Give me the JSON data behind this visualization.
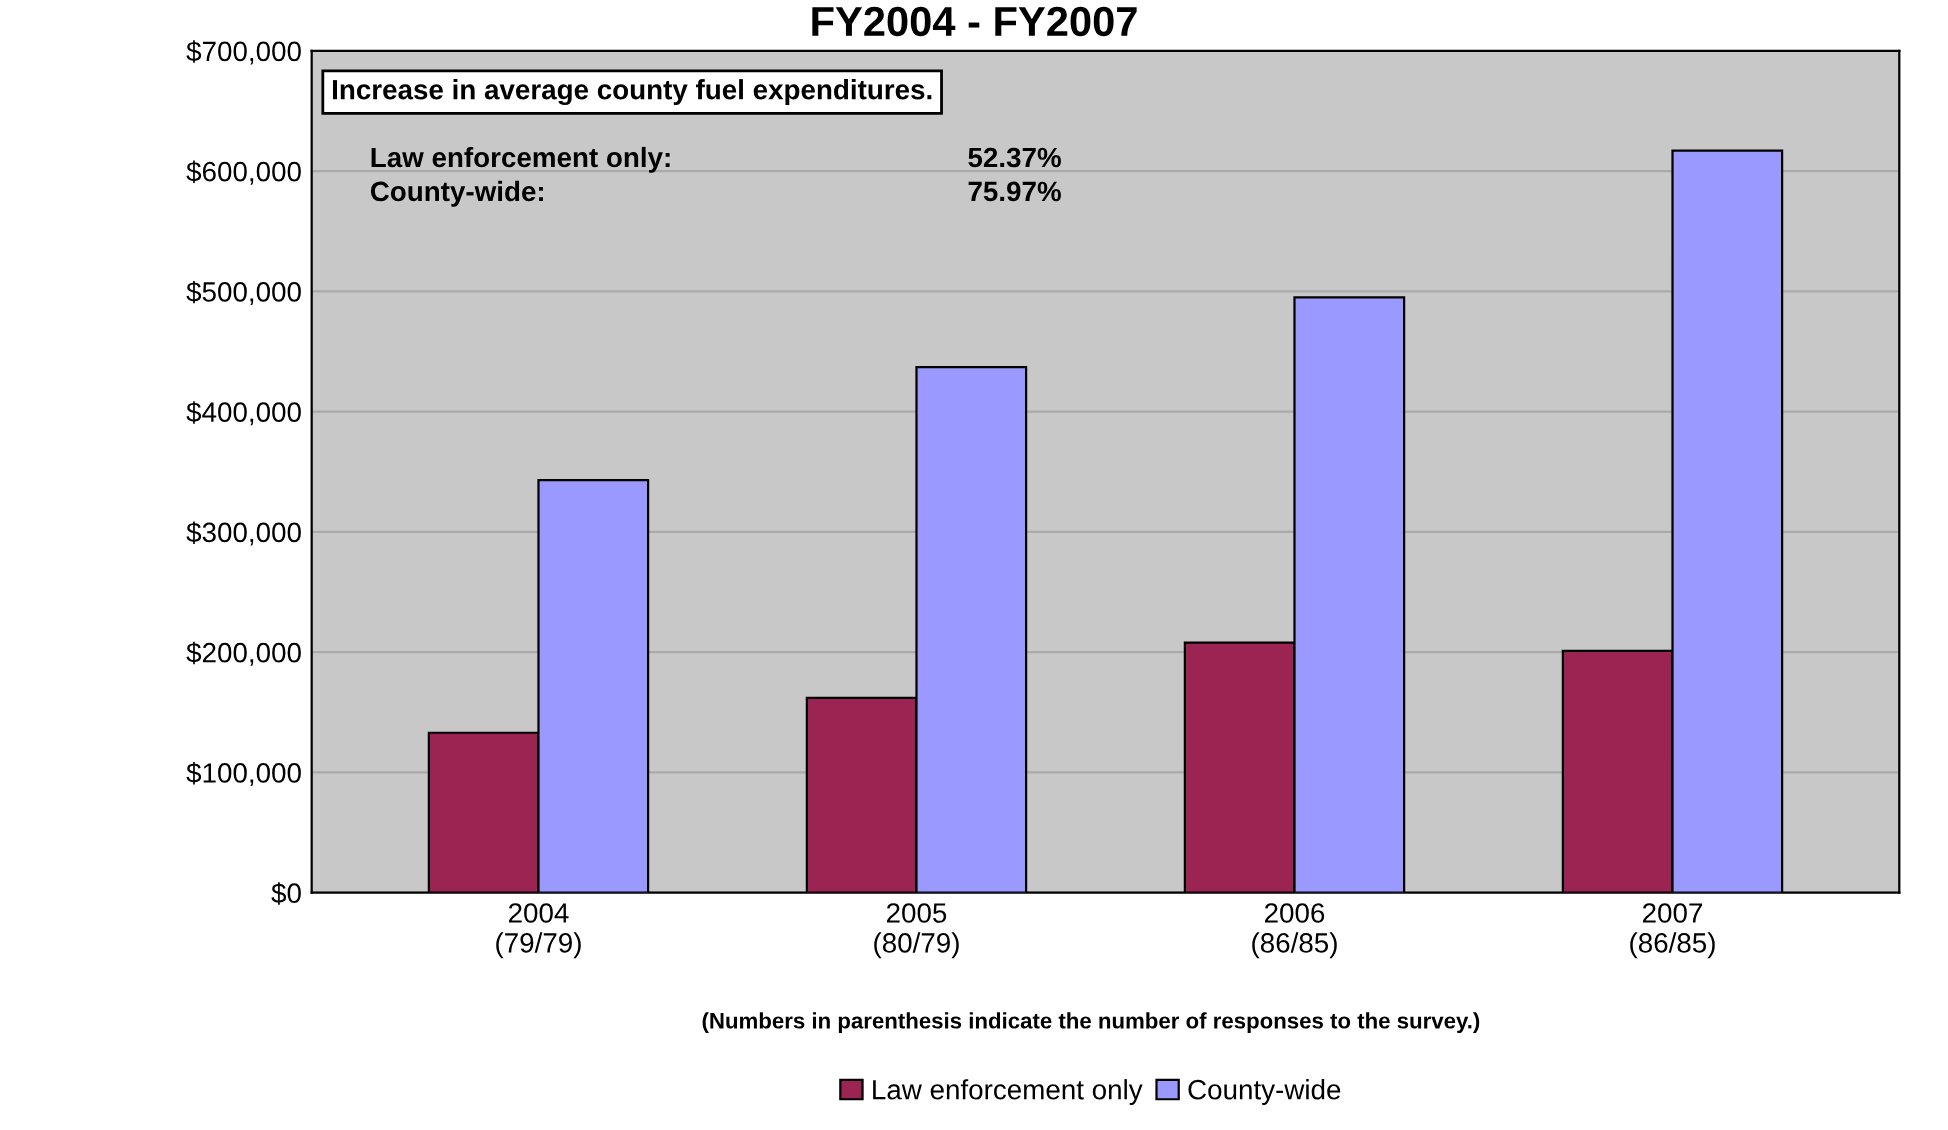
{
  "chart_data": {
    "type": "bar",
    "title": "FY2004 - FY2007",
    "categories": [
      "2004\n(79/79)",
      "2005\n(80/79)",
      "2006\n(86/85)",
      "2007\n(86/85)"
    ],
    "series": [
      {
        "name": "Law enforcement only",
        "color": "#9b2452",
        "values": [
          133000,
          162000,
          208000,
          201000
        ]
      },
      {
        "name": "County-wide",
        "color": "#9999ff",
        "values": [
          343000,
          437000,
          495000,
          617000
        ]
      }
    ],
    "ylim": [
      0,
      700000
    ],
    "yticks": [
      {
        "value": 0,
        "label": "$0"
      },
      {
        "value": 100000,
        "label": "$100,000"
      },
      {
        "value": 200000,
        "label": "$200,000"
      },
      {
        "value": 300000,
        "label": "$300,000"
      },
      {
        "value": 400000,
        "label": "$400,000"
      },
      {
        "value": 500000,
        "label": "$500,000"
      },
      {
        "value": 600000,
        "label": "$600,000"
      },
      {
        "value": 700000,
        "label": "$700,000"
      }
    ],
    "grid": "y",
    "legend": "bottom",
    "annotations": [
      "Increase in average county fuel expenditures.",
      "Law enforcement only:",
      "52.37%",
      "County-wide:",
      "75.97%",
      "(Numbers in parenthesis indicate the number of responses to the survey.)"
    ]
  }
}
